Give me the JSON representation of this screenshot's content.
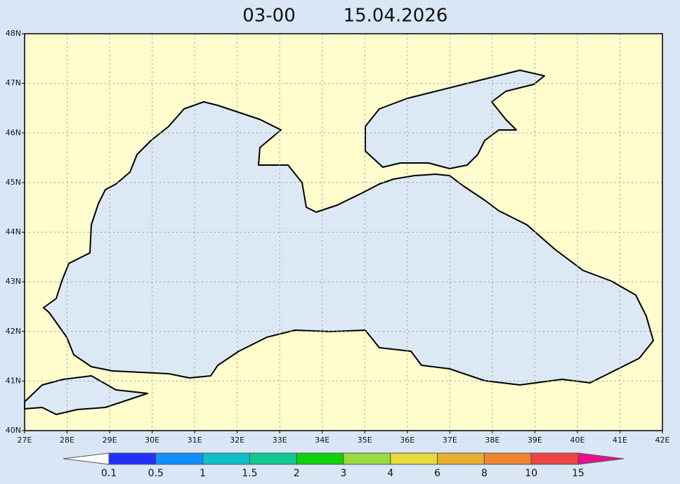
{
  "header": {
    "time": "03-00",
    "date": "15.04.2026"
  },
  "map": {
    "lat_labels": [
      "40N",
      "41N",
      "42N",
      "43N",
      "44N",
      "45N",
      "46N",
      "47N",
      "48N"
    ],
    "lon_labels": [
      "27E",
      "28E",
      "29E",
      "30E",
      "31E",
      "32E",
      "33E",
      "34E",
      "35E",
      "36E",
      "37E",
      "38E",
      "39E",
      "40E",
      "41E",
      "42E"
    ],
    "land_color": "#fffccd",
    "sea_color": "#dce9f5"
  },
  "colorbar": {
    "levels": [
      0.1,
      0.5,
      1,
      1.5,
      2,
      3,
      4,
      6,
      8,
      10,
      15
    ],
    "colors": [
      "#ffffff",
      "#2030ff",
      "#1090ff",
      "#10c0c8",
      "#10c890",
      "#10d010",
      "#98dc40",
      "#e6dc3c",
      "#e8b030",
      "#f08430",
      "#f04444",
      "#e8108c"
    ]
  }
}
